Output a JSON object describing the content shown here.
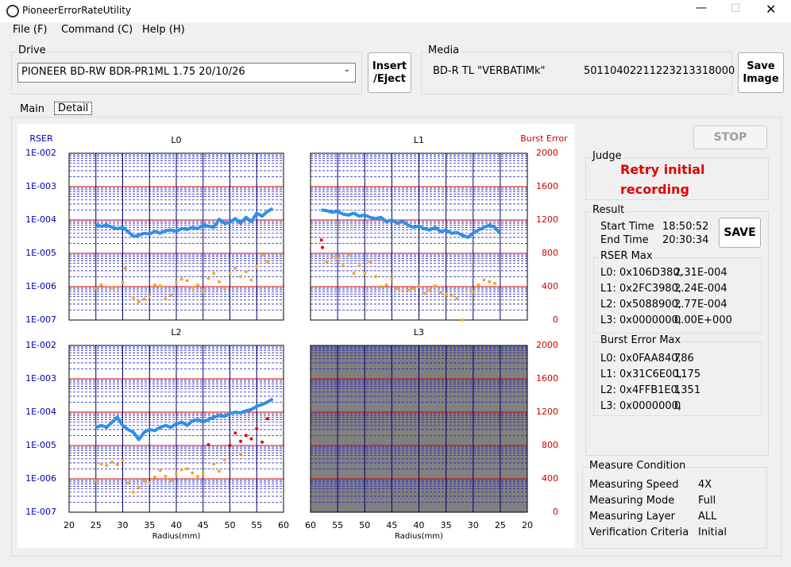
{
  "window": {
    "title": "PioneerErrorRateUtility"
  },
  "menu": [
    "File (F)",
    "Command (C)",
    "Help (H)"
  ],
  "drive": {
    "label": "Drive",
    "value": "PIONEER BD-RW BDR-PR1ML 1.75 20/10/26"
  },
  "insert_button": [
    "Insert",
    "/Eject"
  ],
  "media": {
    "label": "Media",
    "type": "BD-R TL \"VERBATIMk\"",
    "id": "50110402211223213318000"
  },
  "save_image_button": [
    "Save",
    "Image"
  ],
  "tabs": [
    "Main",
    "Detail"
  ],
  "stop_button": "STOP",
  "judge": {
    "label": "Judge",
    "text": [
      "Retry initial",
      "recording"
    ]
  },
  "result": {
    "label": "Result",
    "start_label": "Start Time",
    "start": "18:50:52",
    "end_label": "End Time",
    "end": "20:30:34",
    "save": "SAVE",
    "rser_max": {
      "label": "RSER Max",
      "rows": [
        [
          "L0: 0x106D380,",
          "2.31E-004"
        ],
        [
          "L1: 0x2FC3980,",
          "2.24E-004"
        ],
        [
          "L2: 0x5088900,",
          "2.77E-004"
        ],
        [
          "L3: 0x0000000,",
          "0.00E+000"
        ]
      ]
    },
    "burst_max": {
      "label": "Burst Error Max",
      "rows": [
        [
          "L0: 0x0FAA840,",
          786
        ],
        [
          "L1: 0x31C6E00,",
          1175
        ],
        [
          "L2: 0x4FFB1E0,",
          1351
        ],
        [
          "L3: 0x0000000,",
          0
        ]
      ]
    }
  },
  "measure": {
    "label": "Measure Condition",
    "rows": [
      [
        "Measuring Speed",
        "4X"
      ],
      [
        "Measuring Mode",
        "Full"
      ],
      [
        "Measuring Layer",
        "ALL"
      ],
      [
        "Verification Criteria",
        "Initial"
      ]
    ]
  },
  "plot": {
    "y_label": "RSER",
    "y2_label": "Burst Error",
    "x_label": "Radius(mm)",
    "log_y": true,
    "ylim": [
      1e-07,
      0.01
    ],
    "yticks": [
      {
        "value": 0.01,
        "label": "1E-002"
      },
      {
        "value": 0.001,
        "label": "1E-003"
      },
      {
        "value": 0.0001,
        "label": "1E-004"
      },
      {
        "value": 1e-05,
        "label": "1E-005"
      },
      {
        "value": 1e-06,
        "label": "1E-006"
      },
      {
        "value": 1e-07,
        "label": "1E-007"
      }
    ],
    "y2lim": [
      0,
      2000
    ],
    "y2ticks": [
      2000,
      1600,
      1200,
      800,
      400,
      0
    ],
    "rser_color": "#2f8fe6",
    "panels": [
      {
        "title": "L0",
        "xlim": [
          20,
          60
        ],
        "xticks": [
          20,
          25,
          30,
          35,
          40,
          45,
          50,
          55,
          60
        ],
        "rser": {
          "x": [
            25,
            26,
            27,
            28,
            29,
            30,
            31,
            32,
            33,
            34,
            35,
            36,
            37,
            38,
            39,
            40,
            41,
            42,
            43,
            44,
            45,
            46,
            47,
            48,
            49,
            50,
            51,
            52,
            53,
            54,
            55,
            56,
            57,
            58
          ],
          "values": [
            7e-05,
            6.5e-05,
            7e-05,
            6e-05,
            5.5e-05,
            6e-05,
            4.5e-05,
            3.2e-05,
            3.5e-05,
            4e-05,
            3.8e-05,
            4.5e-05,
            4e-05,
            4.8e-05,
            5e-05,
            4.6e-05,
            5.5e-05,
            5.2e-05,
            6e-05,
            5.5e-05,
            7e-05,
            6.5e-05,
            6e-05,
            0.000105,
            8e-05,
            8.5e-05,
            0.00011,
            8e-05,
            0.00012,
            9e-05,
            0.00016,
            0.00013,
            0.00018,
            0.00022
          ]
        },
        "burst": [
          {
            "color": "#f5a623",
            "x": [
              25,
              26,
              28,
              30,
              30.5,
              32,
              33,
              34,
              35,
              36,
              37,
              38,
              39,
              40,
              41,
              42,
              43,
              44,
              45,
              46,
              47,
              48,
              49,
              50,
              51,
              52,
              53,
              54,
              55,
              56,
              57
            ],
            "values": [
              380,
              420,
              390,
              450,
              620,
              270,
              220,
              250,
              290,
              420,
              410,
              250,
              300,
              450,
              490,
              470,
              390,
              420,
              350,
              500,
              560,
              460,
              380,
              560,
              620,
              520,
              580,
              480,
              640,
              780,
              700
            ]
          }
        ]
      },
      {
        "title": "L1",
        "xlim": [
          60,
          20
        ],
        "xticks": [
          60,
          55,
          50,
          45,
          40,
          35,
          30,
          25,
          20
        ],
        "rser": {
          "x": [
            58,
            57,
            56,
            55,
            54,
            53,
            52,
            51,
            50,
            49,
            48,
            47,
            46,
            45,
            44,
            43,
            42,
            41,
            40,
            39,
            38,
            37,
            36,
            35,
            34,
            33,
            32,
            31,
            30,
            29,
            28,
            27,
            26,
            25
          ],
          "values": [
            0.0002,
            0.00019,
            0.00017,
            0.00018,
            0.00015,
            0.00014,
            0.00016,
            0.00013,
            0.00014,
            0.00012,
            0.00011,
            0.00012,
            9e-05,
            0.0001,
            8e-05,
            9e-05,
            7e-05,
            6e-05,
            6.5e-05,
            5.5e-05,
            5e-05,
            6e-05,
            4.5e-05,
            5e-05,
            4e-05,
            4.2e-05,
            3.5e-05,
            3e-05,
            4e-05,
            5e-05,
            6e-05,
            7e-05,
            6e-05,
            4e-05
          ]
        },
        "burst": [
          {
            "color": "#f5a623",
            "x": [
              57,
              56,
              55,
              54,
              53,
              52,
              51,
              50,
              49,
              48,
              47,
              46,
              45,
              44,
              43,
              42,
              41,
              40,
              39,
              38,
              37,
              36,
              35,
              34,
              33,
              32,
              30,
              29,
              28,
              27,
              26
            ],
            "values": [
              700,
              760,
              740,
              650,
              780,
              560,
              650,
              560,
              700,
              520,
              400,
              420,
              500,
              380,
              350,
              360,
              380,
              400,
              320,
              360,
              410,
              330,
              300,
              290,
              260,
              0,
              340,
              420,
              480,
              460,
              440
            ]
          },
          {
            "color": "#e00000",
            "x": [
              58,
              57.8
            ],
            "values": [
              960,
              870
            ]
          }
        ]
      },
      {
        "title": "L2",
        "xlim": [
          20,
          60
        ],
        "xticks": [
          20,
          25,
          30,
          35,
          40,
          45,
          50,
          55,
          60
        ],
        "rser": {
          "x": [
            25,
            26,
            27,
            28,
            29,
            30,
            31,
            32,
            33,
            34,
            35,
            36,
            37,
            38,
            39,
            40,
            41,
            42,
            43,
            44,
            45,
            46,
            47,
            48,
            49,
            50,
            51,
            52,
            53,
            54,
            55,
            56,
            57,
            58
          ],
          "values": [
            3.5e-05,
            4e-05,
            3.5e-05,
            5e-05,
            7e-05,
            4e-05,
            3e-05,
            2.5e-05,
            1.5e-05,
            2.5e-05,
            3e-05,
            2.8e-05,
            3.5e-05,
            4e-05,
            3.5e-05,
            4.5e-05,
            5e-05,
            4e-05,
            5.5e-05,
            6e-05,
            5e-05,
            6e-05,
            7e-05,
            8e-05,
            7.5e-05,
            9e-05,
            0.0001,
            9.5e-05,
            0.00011,
            0.00012,
            0.00015,
            0.00017,
            0.0002,
            0.00025
          ]
        },
        "burst": [
          {
            "color": "#f5a623",
            "x": [
              25,
              26,
              27,
              28,
              29,
              30,
              31,
              32,
              33,
              34,
              35,
              36,
              37,
              38,
              39,
              40,
              41,
              42,
              43,
              44,
              45,
              47,
              48,
              49,
              52
            ],
            "values": [
              380,
              580,
              560,
              600,
              570,
              620,
              350,
              240,
              300,
              380,
              350,
              420,
              500,
              430,
              380,
              460,
              510,
              520,
              470,
              430,
              470,
              580,
              490,
              630,
              700
            ]
          },
          {
            "color": "#e00000",
            "x": [
              46,
              50,
              51,
              52,
              53,
              54,
              55,
              56,
              57
            ],
            "values": [
              810,
              800,
              950,
              850,
              920,
              880,
              1000,
              840,
              1120
            ]
          }
        ]
      },
      {
        "title": "L3",
        "xlim": [
          60,
          20
        ],
        "xticks": [
          60,
          55,
          50,
          45,
          40,
          35,
          30,
          25,
          20
        ],
        "disabled": true,
        "rser": {
          "x": [],
          "values": []
        },
        "burst": []
      }
    ]
  }
}
